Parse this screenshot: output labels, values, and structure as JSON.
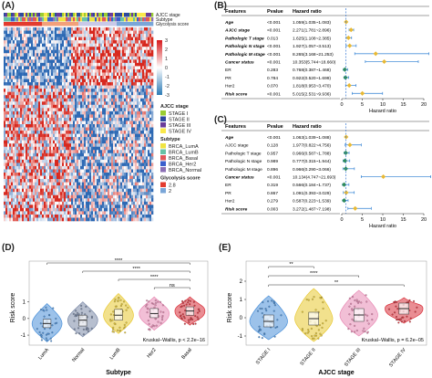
{
  "panels": {
    "a": "(A)",
    "b": "(B)",
    "c": "(C)",
    "d": "(D)",
    "e": "(E)"
  },
  "colors": {
    "heat_high": "#d7191c",
    "heat_low": "#2c7bb6",
    "forest_point": "#e8b935",
    "forest_point_ref": "#2e8b57",
    "forest_line": "#4a90d9",
    "ref_line": "#3a7bd5"
  },
  "chart_data": [
    {
      "id": "A",
      "type": "heatmap",
      "annotation_tracks": [
        "AJCC stage",
        "Subtype",
        "Glycolysis score"
      ],
      "scale_ticks": [
        3,
        2,
        1,
        0,
        -1,
        -2,
        -3
      ],
      "legend": {
        "ajcc_title": "AJCC stage",
        "ajcc": [
          {
            "label": "STAGE I",
            "color": "#9acd32"
          },
          {
            "label": "STAGE II",
            "color": "#2e4a9e"
          },
          {
            "label": "STAGE III",
            "color": "#6a3d9a"
          },
          {
            "label": "STAGE IV",
            "color": "#f9e84a"
          }
        ],
        "subtype_title": "Subtype",
        "subtype": [
          {
            "label": "BRCA_LumA",
            "color": "#f0e442"
          },
          {
            "label": "BRCA_LumB",
            "color": "#66c2a5"
          },
          {
            "label": "BRCA_Basal",
            "color": "#e15759"
          },
          {
            "label": "BRCA_Her2",
            "color": "#3a5fcd"
          },
          {
            "label": "BRCA_Normal",
            "color": "#8b6fb5"
          }
        ],
        "glyco_title": "Glycolysis score",
        "glyco": [
          {
            "label": "2.8",
            "color": "#e33b2e"
          },
          {
            "label": "2",
            "color": "#7aa6d8"
          }
        ]
      }
    },
    {
      "id": "B",
      "type": "forest",
      "headers": {
        "features": "Features",
        "pvalue": "Pvalue",
        "hr": "Hazard ratio"
      },
      "rows": [
        {
          "feature": "Age",
          "p": "<0.001",
          "hr_text": "1.059(1.035~1.083)",
          "hr": 1.06,
          "lo": 1.035,
          "hi": 1.083,
          "bold": true
        },
        {
          "feature": "AJCC stage",
          "p": "<0.001",
          "hr_text": "2.271(1.781~2.896)",
          "hr": 2.27,
          "lo": 1.78,
          "hi": 2.9,
          "bold": true
        },
        {
          "feature": "Pathologic T stage",
          "p": "0.013",
          "hr_text": "1.625(1.108~2.385)",
          "hr": 1.63,
          "lo": 1.11,
          "hi": 2.39,
          "bold": true
        },
        {
          "feature": "Pathologic N stage",
          "p": "<0.001",
          "hr_text": "1.927(1.057~3.513)",
          "hr": 1.93,
          "lo": 1.06,
          "hi": 3.51,
          "bold": true
        },
        {
          "feature": "Pathologic M stage",
          "p": "<0.001",
          "hr_text": "8.265(3.168~21.253)",
          "hr": 8.27,
          "lo": 3.17,
          "hi": 21.25,
          "bold": true
        },
        {
          "feature": "Cancer status",
          "p": "<0.001",
          "hr_text": "10.353(5.744~18.660)",
          "hr": 10.35,
          "lo": 5.74,
          "hi": 18.66,
          "bold": true
        },
        {
          "feature": "ER",
          "p": "0.283",
          "hr_text": "0.768(0.387~1.468)",
          "hr": 0.77,
          "lo": 0.39,
          "hi": 1.47,
          "bold": false
        },
        {
          "feature": "PR",
          "p": "0.784",
          "hr_text": "0.922(0.520~1.699)",
          "hr": 0.92,
          "lo": 0.52,
          "hi": 1.7,
          "bold": false
        },
        {
          "feature": "Her2",
          "p": "0.070",
          "hr_text": "1.818(0.953~3.470)",
          "hr": 1.82,
          "lo": 0.95,
          "hi": 3.47,
          "bold": false
        },
        {
          "feature": "Risk score",
          "p": "<0.001",
          "hr_text": "5.015(2.531~9.936)",
          "hr": 5.02,
          "lo": 2.53,
          "hi": 9.94,
          "bold": true
        }
      ],
      "xlim": [
        0,
        20
      ],
      "xticks": [
        0,
        5,
        10,
        15,
        20
      ],
      "xlabel": "Hazard ratio"
    },
    {
      "id": "C",
      "type": "forest",
      "headers": {
        "features": "Features",
        "pvalue": "Pvalue",
        "hr": "Hazard ratio"
      },
      "rows": [
        {
          "feature": "Age",
          "p": "<0.001",
          "hr_text": "1.063(1.039~1.088)",
          "hr": 1.06,
          "lo": 1.04,
          "hi": 1.09,
          "bold": true
        },
        {
          "feature": "AJCC stage",
          "p": "0.128",
          "hr_text": "1.977(0.822~4.756)",
          "hr": 1.98,
          "lo": 0.82,
          "hi": 4.76,
          "bold": false
        },
        {
          "feature": "Pathologic T stage",
          "p": "0.957",
          "hr_text": "0.966(0.587~1.788)",
          "hr": 0.97,
          "lo": 0.59,
          "hi": 1.79,
          "bold": false
        },
        {
          "feature": "Pathologic N stage",
          "p": "0.989",
          "hr_text": "0.777(0.315~1.944)",
          "hr": 0.78,
          "lo": 0.32,
          "hi": 1.94,
          "bold": false
        },
        {
          "feature": "Pathologic M stage",
          "p": "0.896",
          "hr_text": "0.966(0.290~3.066)",
          "hr": 0.97,
          "lo": 0.29,
          "hi": 3.07,
          "bold": false
        },
        {
          "feature": "Cancer status",
          "p": "<0.001",
          "hr_text": "10.134(4.747~21.693)",
          "hr": 10.13,
          "lo": 4.75,
          "hi": 21.69,
          "bold": true
        },
        {
          "feature": "ER",
          "p": "0.319",
          "hr_text": "0.566(0.184~1.737)",
          "hr": 0.57,
          "lo": 0.18,
          "hi": 1.74,
          "bold": false
        },
        {
          "feature": "PR",
          "p": "0.867",
          "hr_text": "1.091(0.393~3.029)",
          "hr": 1.09,
          "lo": 0.39,
          "hi": 3.03,
          "bold": false
        },
        {
          "feature": "Her2",
          "p": "0.279",
          "hr_text": "0.587(0.223~1.539)",
          "hr": 0.59,
          "lo": 0.22,
          "hi": 1.54,
          "bold": false
        },
        {
          "feature": "Risk score",
          "p": "0.003",
          "hr_text": "3.272(1.487~7.198)",
          "hr": 3.27,
          "lo": 1.49,
          "hi": 7.2,
          "bold": true
        }
      ],
      "xlim": [
        0,
        20
      ],
      "xticks": [
        0,
        5,
        10,
        15,
        20
      ],
      "xlabel": "Hazard ratio"
    },
    {
      "id": "D",
      "type": "violin",
      "categories": [
        "LumA",
        "Normal",
        "LumB",
        "Her2",
        "Basal"
      ],
      "colors": [
        "#4a90d9",
        "#7b8aa8",
        "#e8c830",
        "#e88ab4",
        "#d9303a"
      ],
      "medians": [
        -0.3,
        -0.1,
        0.2,
        0.3,
        0.45
      ],
      "q1": [
        -0.55,
        -0.45,
        -0.1,
        0.05,
        0.2
      ],
      "q3": [
        -0.05,
        0.2,
        0.55,
        0.6,
        0.7
      ],
      "min": [
        -1.4,
        -1.1,
        -0.9,
        -0.7,
        -0.4
      ],
      "max": [
        0.9,
        1.0,
        1.5,
        1.3,
        1.3
      ],
      "xlabel": "Subtype",
      "ylabel": "Risk score",
      "yticks": [
        -1,
        0,
        1
      ],
      "ylim": [
        -1.6,
        2.9
      ],
      "sig": [
        {
          "a": 0,
          "b": 4,
          "label": "****"
        },
        {
          "a": 1,
          "b": 4,
          "label": "****"
        },
        {
          "a": 2,
          "b": 4,
          "label": "****"
        },
        {
          "a": 3,
          "b": 4,
          "label": "ns"
        }
      ],
      "note": "Kruskal−Wallis, p < 2.2e−16"
    },
    {
      "id": "E",
      "type": "violin",
      "categories": [
        "STAGE I",
        "STAGE II",
        "STAGE III",
        "STAGE IV"
      ],
      "colors": [
        "#4a90d9",
        "#e8c830",
        "#e88ab4",
        "#d9303a"
      ],
      "medians": [
        -0.2,
        -0.05,
        0.15,
        0.5
      ],
      "q1": [
        -0.5,
        -0.4,
        -0.2,
        0.2
      ],
      "q3": [
        0.15,
        0.3,
        0.5,
        0.8
      ],
      "min": [
        -1.2,
        -1.3,
        -1.0,
        -0.3
      ],
      "max": [
        1.2,
        1.6,
        1.5,
        1.1
      ],
      "xlabel": "AJCC stage",
      "ylabel": "Risk score",
      "yticks": [
        -1,
        0,
        1,
        2
      ],
      "ylim": [
        -1.5,
        2.6
      ],
      "sig": [
        {
          "a": 0,
          "b": 1,
          "label": "**"
        },
        {
          "a": 0,
          "b": 2,
          "label": "****"
        },
        {
          "a": 0,
          "b": 3,
          "label": "**"
        }
      ],
      "note": "Kruskal−Wallis, p = 6.2e−05"
    }
  ]
}
